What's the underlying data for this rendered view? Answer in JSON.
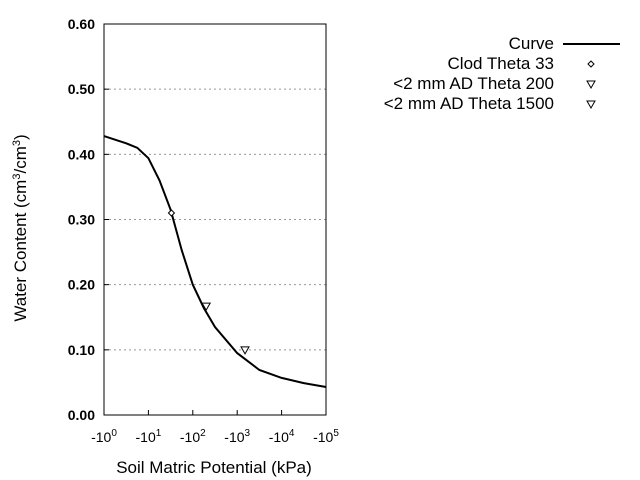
{
  "chart_data": {
    "type": "line",
    "title": "",
    "xlabel": "Soil Matric Potential (kPa)",
    "ylabel": "Water Content (cm3/cm3)",
    "ylabel_parts": {
      "pre": "Water Content (cm",
      "sup1": "3",
      "mid": "/cm",
      "sup2": "3",
      "post": ")"
    },
    "x_scale": "log (negative potential)",
    "xlim": [
      -1,
      -100000
    ],
    "ylim": [
      0,
      0.6
    ],
    "x_ticks": [
      {
        "value": -1,
        "base": "-10",
        "exp": "0"
      },
      {
        "value": -10,
        "base": "-10",
        "exp": "1"
      },
      {
        "value": -100,
        "base": "-10",
        "exp": "2"
      },
      {
        "value": -1000,
        "base": "-10",
        "exp": "3"
      },
      {
        "value": -10000,
        "base": "-10",
        "exp": "4"
      },
      {
        "value": -100000,
        "base": "-10",
        "exp": "5"
      }
    ],
    "y_ticks": [
      {
        "value": 0.0,
        "label": "0.00"
      },
      {
        "value": 0.1,
        "label": "0.10"
      },
      {
        "value": 0.2,
        "label": "0.20"
      },
      {
        "value": 0.3,
        "label": "0.30"
      },
      {
        "value": 0.4,
        "label": "0.40"
      },
      {
        "value": 0.5,
        "label": "0.50"
      },
      {
        "value": 0.6,
        "label": "0.60"
      }
    ],
    "grid": "horizontal dotted",
    "legend_placement": "right",
    "series": [
      {
        "name": "Curve",
        "kind": "line",
        "color": "#000000",
        "x": [
          -1,
          -3.16,
          -5.62,
          -10,
          -17.8,
          -31.6,
          -56.2,
          -100,
          -178,
          -316,
          -1000,
          -3162,
          -10000,
          -31623,
          -100000
        ],
        "y": [
          0.428,
          0.417,
          0.41,
          0.394,
          0.36,
          0.315,
          0.253,
          0.2,
          0.164,
          0.135,
          0.095,
          0.069,
          0.057,
          0.049,
          0.043
        ]
      },
      {
        "name": "Clod Theta 33",
        "kind": "marker",
        "marker": "diamond",
        "x": [
          -33
        ],
        "y": [
          0.31
        ]
      },
      {
        "name": "<2 mm AD Theta 200",
        "kind": "marker",
        "marker": "triangle-down",
        "x": [
          -200
        ],
        "y": [
          0.167
        ]
      },
      {
        "name": "<2 mm AD Theta 1500",
        "kind": "marker",
        "marker": "triangle-down",
        "x": [
          -1500
        ],
        "y": [
          0.1
        ]
      }
    ]
  }
}
